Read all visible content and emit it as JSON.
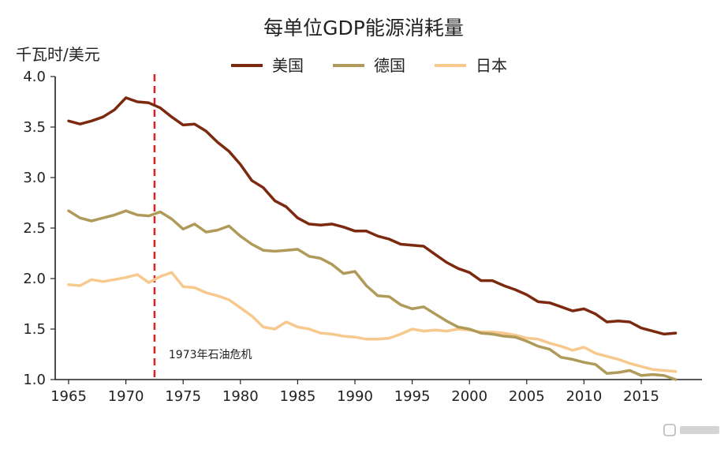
{
  "chart_data": {
    "type": "line",
    "title": "每单位GDP能源消耗量",
    "ylabel": "千瓦时/美元",
    "xlabel": "",
    "xlim": [
      1965,
      2018
    ],
    "ylim": [
      1.0,
      4.0
    ],
    "yticks": [
      "4.0",
      "3.5",
      "3.0",
      "2.5",
      "2.0",
      "1.5",
      "1.0"
    ],
    "xticks": [
      "1965",
      "1970",
      "1975",
      "1980",
      "1985",
      "1990",
      "1995",
      "2000",
      "2005",
      "2010",
      "2015"
    ],
    "grid": false,
    "legend_position": "top",
    "x": [
      1965,
      1966,
      1967,
      1968,
      1969,
      1970,
      1971,
      1972,
      1973,
      1974,
      1975,
      1976,
      1977,
      1978,
      1979,
      1980,
      1981,
      1982,
      1983,
      1984,
      1985,
      1986,
      1987,
      1988,
      1989,
      1990,
      1991,
      1992,
      1993,
      1994,
      1995,
      1996,
      1997,
      1998,
      1999,
      2000,
      2001,
      2002,
      2003,
      2004,
      2005,
      2006,
      2007,
      2008,
      2009,
      2010,
      2011,
      2012,
      2013,
      2014,
      2015,
      2016,
      2017,
      2018
    ],
    "series": [
      {
        "name": "美国",
        "color": "#7b2a10",
        "values": [
          3.56,
          3.53,
          3.56,
          3.6,
          3.67,
          3.79,
          3.75,
          3.74,
          3.69,
          3.6,
          3.52,
          3.53,
          3.46,
          3.35,
          3.26,
          3.13,
          2.97,
          2.9,
          2.77,
          2.71,
          2.6,
          2.54,
          2.53,
          2.54,
          2.51,
          2.47,
          2.47,
          2.42,
          2.39,
          2.34,
          2.33,
          2.32,
          2.24,
          2.16,
          2.1,
          2.06,
          1.98,
          1.98,
          1.93,
          1.89,
          1.84,
          1.77,
          1.76,
          1.72,
          1.68,
          1.7,
          1.65,
          1.57,
          1.58,
          1.57,
          1.51,
          1.48,
          1.45,
          1.46
        ]
      },
      {
        "name": "德国",
        "color": "#b09a5a",
        "values": [
          2.67,
          2.6,
          2.57,
          2.6,
          2.63,
          2.67,
          2.63,
          2.62,
          2.66,
          2.59,
          2.49,
          2.54,
          2.46,
          2.48,
          2.52,
          2.42,
          2.34,
          2.28,
          2.27,
          2.28,
          2.29,
          2.22,
          2.2,
          2.14,
          2.05,
          2.07,
          1.93,
          1.83,
          1.82,
          1.74,
          1.7,
          1.72,
          1.65,
          1.58,
          1.52,
          1.5,
          1.46,
          1.45,
          1.43,
          1.42,
          1.38,
          1.33,
          1.3,
          1.22,
          1.2,
          1.17,
          1.15,
          1.06,
          1.07,
          1.09,
          1.04,
          1.05,
          1.04,
          1.0
        ]
      },
      {
        "name": "日本",
        "color": "#f7c98e",
        "values": [
          1.94,
          1.93,
          1.99,
          1.97,
          1.99,
          2.01,
          2.04,
          1.96,
          2.02,
          2.06,
          1.92,
          1.91,
          1.86,
          1.83,
          1.79,
          1.71,
          1.63,
          1.52,
          1.5,
          1.57,
          1.52,
          1.5,
          1.46,
          1.45,
          1.43,
          1.42,
          1.4,
          1.4,
          1.41,
          1.45,
          1.5,
          1.48,
          1.49,
          1.48,
          1.5,
          1.49,
          1.47,
          1.47,
          1.46,
          1.44,
          1.41,
          1.4,
          1.36,
          1.33,
          1.29,
          1.32,
          1.26,
          1.23,
          1.2,
          1.16,
          1.13,
          1.1,
          1.09,
          1.08
        ]
      }
    ],
    "reference_line": {
      "x": 1972.5,
      "label": "1973年石油危机",
      "color": "#e02020"
    },
    "axis_color": "#222222"
  }
}
